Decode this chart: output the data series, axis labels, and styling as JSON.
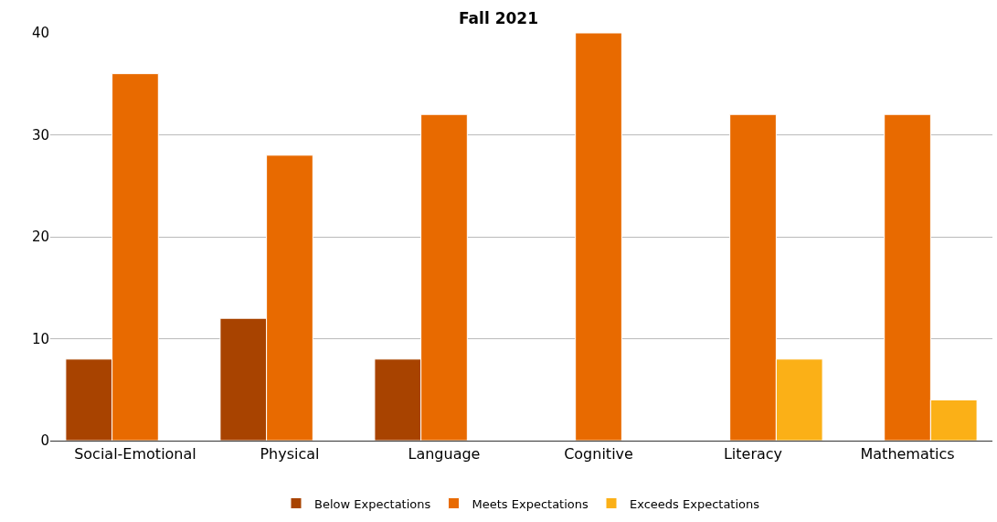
{
  "chart_data": {
    "type": "bar",
    "title": "Fall 2021",
    "categories": [
      "Social-Emotional",
      "Physical",
      "Language",
      "Cognitive",
      "Literacy",
      "Mathematics"
    ],
    "series": [
      {
        "name": "Below Expectations",
        "color": "#a84300",
        "values": [
          8,
          12,
          8,
          null,
          null,
          null
        ]
      },
      {
        "name": "Meets Expectations",
        "color": "#e86a00",
        "values": [
          36,
          28,
          32,
          40,
          32,
          32
        ]
      },
      {
        "name": "Exceeds Expectations",
        "color": "#fbb017",
        "values": [
          null,
          null,
          null,
          null,
          8,
          4
        ]
      }
    ],
    "ylim": [
      0,
      40
    ],
    "yticks": [
      0,
      10,
      20,
      30,
      40
    ],
    "grid": "y",
    "legend": "bottom"
  }
}
